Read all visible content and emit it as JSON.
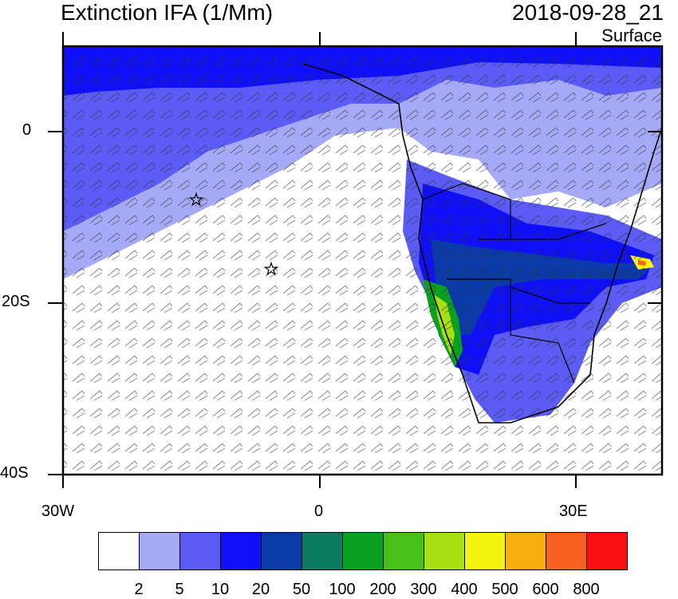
{
  "title": {
    "left": "Extinction IFA (1/Mm)",
    "right": "2018-09-28_21"
  },
  "level": "Surface",
  "axes": {
    "lat_labels": [
      "0",
      "20S",
      "40S"
    ],
    "lon_labels": [
      "30W",
      "0",
      "30E"
    ]
  },
  "colorbar": {
    "colors": [
      "#ffffff",
      "#a5a9f6",
      "#5a5cf5",
      "#1010f8",
      "#0a3aa8",
      "#0a7a60",
      "#0aa020",
      "#47c01a",
      "#a8e016",
      "#f4f410",
      "#f8b010",
      "#f86020",
      "#f81010"
    ],
    "labels": [
      "2",
      "5",
      "10",
      "20",
      "50",
      "100",
      "200",
      "300",
      "400",
      "500",
      "600",
      "800"
    ]
  },
  "markers": {
    "stars": 2
  }
}
